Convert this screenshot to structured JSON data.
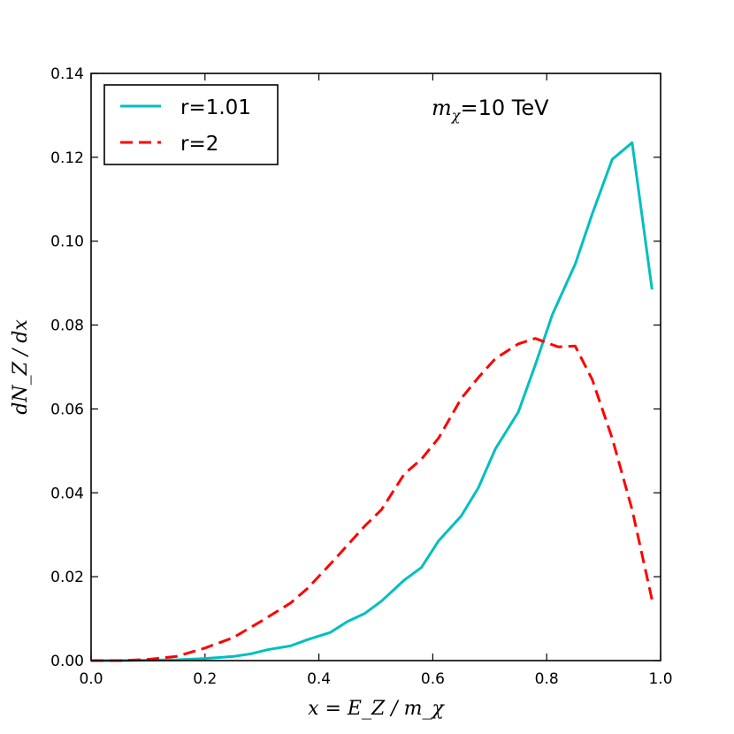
{
  "chart_data": {
    "type": "line",
    "title": "",
    "xlabel": "x = E_Z / m_χ",
    "ylabel": "dN_Z / dx",
    "xlim": [
      0.0,
      1.0
    ],
    "ylim": [
      0.0,
      0.14
    ],
    "x_ticks": [
      0.0,
      0.2,
      0.4,
      0.6,
      0.8,
      1.0
    ],
    "x_tick_labels": [
      "0.0",
      "0.2",
      "0.4",
      "0.6",
      "0.8",
      "1.0"
    ],
    "y_ticks": [
      0.0,
      0.02,
      0.04,
      0.06,
      0.08,
      0.1,
      0.12,
      0.14
    ],
    "y_tick_labels": [
      "0.00",
      "0.02",
      "0.04",
      "0.06",
      "0.08",
      "0.10",
      "0.12",
      "0.14"
    ],
    "grid": false,
    "legend_position": "top-left",
    "annotation": {
      "symbol": "m",
      "subscript": "χ",
      "value_text": "=10 TeV"
    },
    "series": [
      {
        "name": "r=1.01",
        "color": "#00bfbf",
        "style": "solid",
        "x": [
          0.0,
          0.05,
          0.1,
          0.15,
          0.2,
          0.25,
          0.28,
          0.31,
          0.35,
          0.38,
          0.42,
          0.45,
          0.48,
          0.51,
          0.55,
          0.58,
          0.61,
          0.65,
          0.68,
          0.71,
          0.75,
          0.78,
          0.81,
          0.85,
          0.88,
          0.915,
          0.95,
          0.985
        ],
        "values": [
          0.0,
          0.0,
          0.0001,
          0.0002,
          0.0005,
          0.001,
          0.0016,
          0.0026,
          0.0035,
          0.005,
          0.0067,
          0.0093,
          0.0112,
          0.0142,
          0.0192,
          0.0222,
          0.0285,
          0.0345,
          0.0412,
          0.0505,
          0.0592,
          0.0705,
          0.0825,
          0.0945,
          0.1065,
          0.1195,
          0.1235,
          0.0885
        ]
      },
      {
        "name": "r=2",
        "color": "#ff0000",
        "style": "dashed",
        "x": [
          0.0,
          0.05,
          0.1,
          0.15,
          0.2,
          0.25,
          0.3,
          0.35,
          0.38,
          0.42,
          0.45,
          0.48,
          0.51,
          0.55,
          0.58,
          0.61,
          0.65,
          0.68,
          0.71,
          0.75,
          0.78,
          0.82,
          0.85,
          0.88,
          0.915,
          0.95,
          0.985
        ],
        "values": [
          0.0,
          0.0,
          0.0003,
          0.001,
          0.003,
          0.0055,
          0.0095,
          0.0137,
          0.0172,
          0.023,
          0.0275,
          0.032,
          0.036,
          0.0445,
          0.048,
          0.053,
          0.0625,
          0.0675,
          0.072,
          0.0755,
          0.0768,
          0.0748,
          0.075,
          0.067,
          0.053,
          0.036,
          0.0145
        ]
      }
    ]
  }
}
